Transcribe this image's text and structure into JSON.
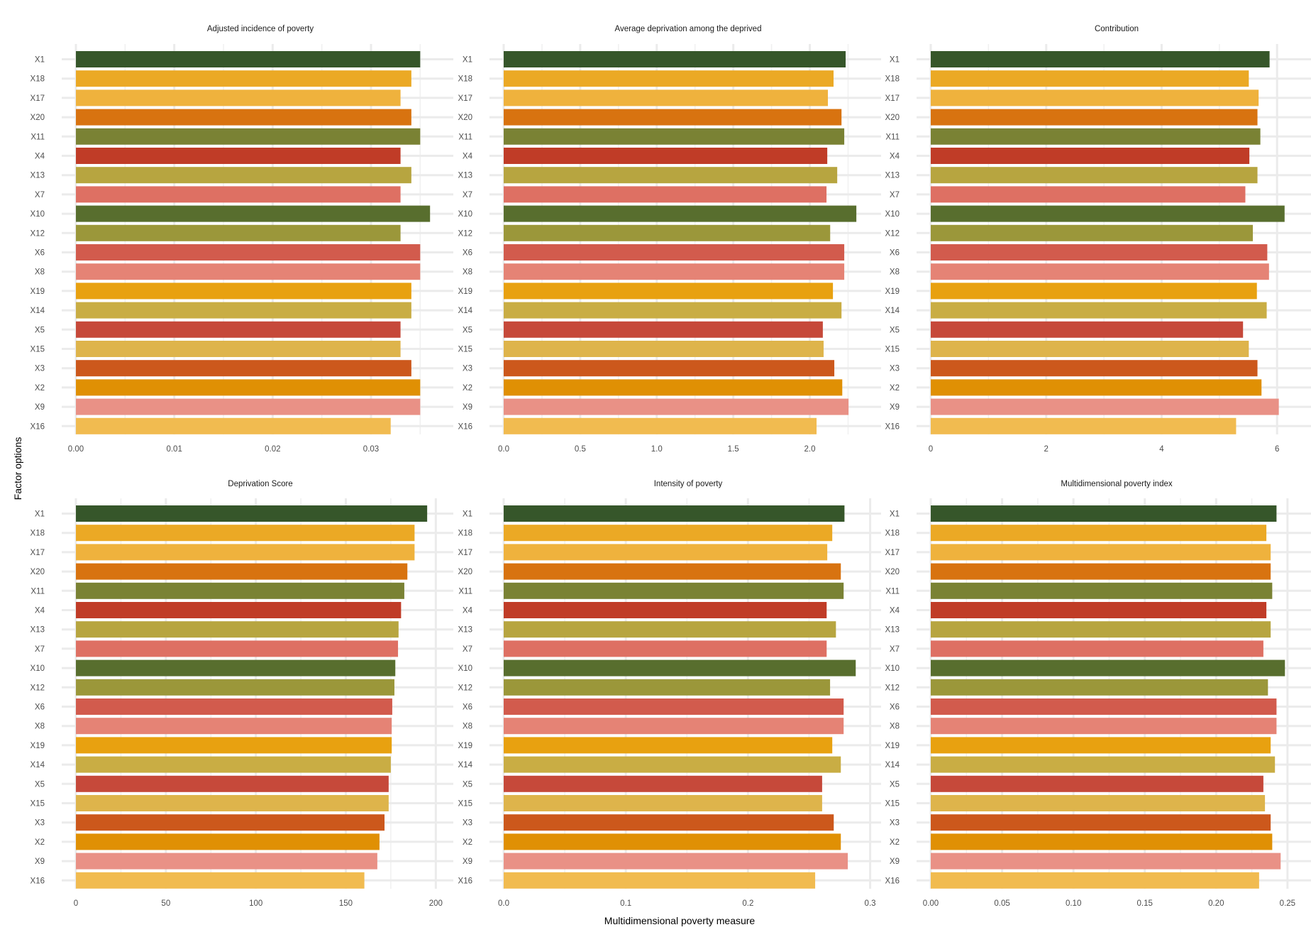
{
  "chart_data": {
    "type": "bar",
    "orientation": "horizontal",
    "xlabel": "Multidimensional poverty measure",
    "ylabel": "Factor options",
    "grid": true,
    "legend": "none",
    "categories": [
      "X1",
      "X18",
      "X17",
      "X20",
      "X11",
      "X4",
      "X13",
      "X7",
      "X10",
      "X12",
      "X6",
      "X8",
      "X19",
      "X14",
      "X5",
      "X15",
      "X3",
      "X2",
      "X9",
      "X16"
    ],
    "colors": [
      "#36562a",
      "#eba925",
      "#efb23d",
      "#d87310",
      "#7a8234",
      "#c03c27",
      "#b7a540",
      "#de7063",
      "#586e2e",
      "#9b973a",
      "#d25b4d",
      "#e58375",
      "#e8a110",
      "#c9ad44",
      "#c6493a",
      "#deb44b",
      "#cc581c",
      "#e09004",
      "#e99186",
      "#f1bb50"
    ],
    "panels": [
      {
        "title": "Adjusted incidence of poverty",
        "xlim": [
          0,
          0.0375
        ],
        "ticks": [
          "0.00",
          "0.01",
          "0.02",
          "0.03"
        ],
        "tick_values": [
          0,
          0.01,
          0.02,
          0.03
        ],
        "values": [
          0.035,
          0.0341,
          0.033,
          0.0341,
          0.035,
          0.033,
          0.0341,
          0.033,
          0.036,
          0.033,
          0.035,
          0.035,
          0.0341,
          0.0341,
          0.033,
          0.033,
          0.0341,
          0.035,
          0.035,
          0.032
        ]
      },
      {
        "title": "Average deprivation among the deprived",
        "xlim": [
          0,
          2.41
        ],
        "ticks": [
          "0.0",
          "0.5",
          "1.0",
          "1.5",
          "2.0"
        ],
        "tick_values": [
          0,
          0.5,
          1.0,
          1.5,
          2.0
        ],
        "values": [
          2.234,
          2.155,
          2.118,
          2.207,
          2.225,
          2.114,
          2.179,
          2.109,
          2.304,
          2.133,
          2.225,
          2.225,
          2.151,
          2.207,
          2.085,
          2.09,
          2.16,
          2.212,
          2.253,
          2.044
        ]
      },
      {
        "title": "Contribution",
        "xlim": [
          0,
          6.44
        ],
        "ticks": [
          "0",
          "2",
          "4",
          "6"
        ],
        "tick_values": [
          0,
          2,
          4,
          6
        ],
        "values": [
          5.87,
          5.51,
          5.68,
          5.66,
          5.71,
          5.52,
          5.66,
          5.45,
          6.13,
          5.58,
          5.83,
          5.86,
          5.65,
          5.82,
          5.41,
          5.51,
          5.66,
          5.73,
          6.03,
          5.29
        ]
      },
      {
        "title": "Deprivation Score",
        "xlim": [
          0,
          205
        ],
        "ticks": [
          "0",
          "50",
          "100",
          "150",
          "200"
        ],
        "tick_values": [
          0,
          50,
          100,
          150,
          200
        ],
        "values": [
          195.2,
          188.2,
          188.2,
          184.2,
          182.5,
          180.7,
          179.3,
          179.0,
          177.5,
          177.0,
          175.8,
          175.5,
          175.5,
          175.0,
          173.8,
          173.8,
          171.5,
          168.7,
          167.5,
          160.3
        ]
      },
      {
        "title": "Intensity of poverty",
        "xlim": [
          0,
          0.302
        ],
        "ticks": [
          "0.0",
          "0.1",
          "0.2",
          "0.3"
        ],
        "tick_values": [
          0,
          0.1,
          0.2,
          0.3
        ],
        "values": [
          0.279,
          0.269,
          0.2649,
          0.276,
          0.2783,
          0.2644,
          0.272,
          0.2644,
          0.2882,
          0.2672,
          0.2783,
          0.2783,
          0.269,
          0.276,
          0.2607,
          0.2607,
          0.2702,
          0.276,
          0.2817,
          0.255
        ]
      },
      {
        "title": "Multidimensional poverty index",
        "xlim": [
          0,
          0.2605
        ],
        "ticks": [
          "0.00",
          "0.05",
          "0.10",
          "0.15",
          "0.20",
          "0.25"
        ],
        "tick_values": [
          0,
          0.05,
          0.1,
          0.15,
          0.2,
          0.25
        ],
        "values": [
          0.2423,
          0.2352,
          0.2382,
          0.2382,
          0.2393,
          0.2352,
          0.2382,
          0.2331,
          0.2482,
          0.2363,
          0.2423,
          0.2423,
          0.2382,
          0.2412,
          0.2331,
          0.2342,
          0.2382,
          0.2393,
          0.2452,
          0.2301
        ]
      }
    ]
  }
}
